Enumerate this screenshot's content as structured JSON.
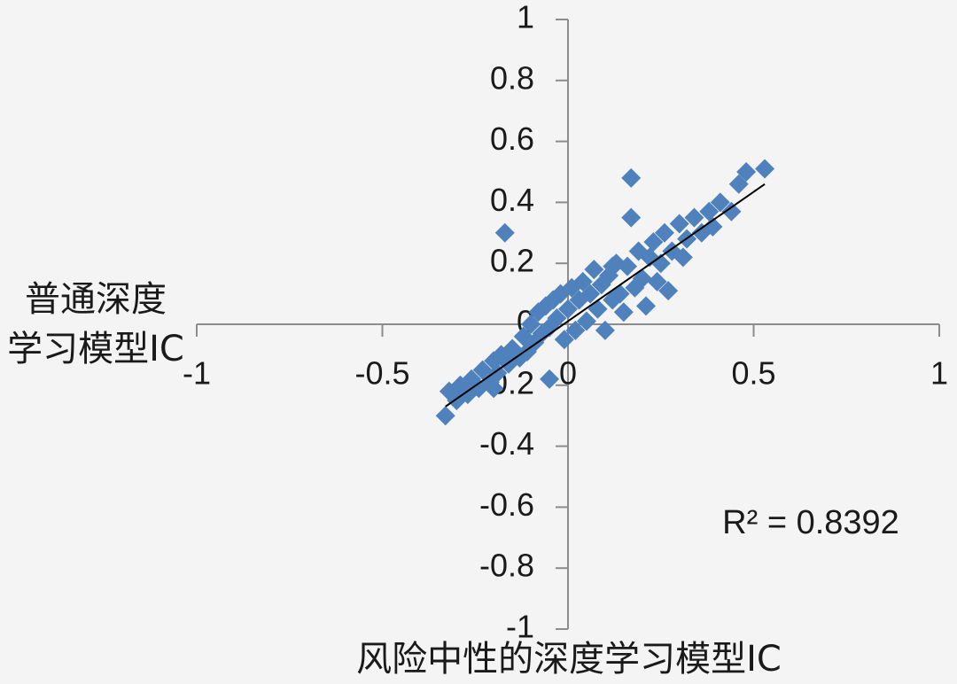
{
  "chart_data": {
    "type": "scatter",
    "xlabel": "风险中性的深度学习模型IC",
    "ylabel": [
      "普通深度",
      "学习模型IC"
    ],
    "annotation": "R² = 0.8392",
    "xlim": [
      -1,
      1
    ],
    "ylim": [
      -1,
      1
    ],
    "xticks": [
      -1,
      -0.5,
      0,
      0.5,
      1
    ],
    "yticks": [
      -1,
      -0.8,
      -0.6,
      -0.4,
      -0.2,
      0,
      0.2,
      0.4,
      0.6,
      0.8,
      1
    ],
    "color": "#4f81bd",
    "x": [
      -0.33,
      -0.32,
      -0.3,
      -0.29,
      -0.27,
      -0.26,
      -0.24,
      -0.23,
      -0.21,
      -0.2,
      -0.19,
      -0.18,
      -0.16,
      -0.15,
      -0.13,
      -0.12,
      -0.11,
      -0.1,
      -0.09,
      -0.08,
      -0.07,
      -0.06,
      -0.05,
      -0.04,
      -0.03,
      -0.02,
      -0.01,
      0.0,
      0.01,
      0.02,
      0.03,
      0.04,
      0.05,
      0.06,
      0.07,
      0.08,
      0.09,
      0.1,
      0.11,
      0.12,
      0.13,
      0.14,
      0.15,
      0.16,
      0.18,
      0.19,
      0.2,
      0.21,
      0.22,
      0.23,
      0.24,
      0.25,
      0.26,
      0.27,
      0.28,
      0.3,
      0.31,
      0.32,
      0.34,
      0.36,
      0.38,
      0.39,
      0.41,
      0.44,
      0.46,
      0.48,
      0.53,
      -0.17,
      0.17,
      0.17,
      -0.05,
      -0.2,
      0.12
    ],
    "values": [
      -0.3,
      -0.22,
      -0.25,
      -0.2,
      -0.23,
      -0.18,
      -0.21,
      -0.15,
      -0.19,
      -0.12,
      -0.16,
      -0.1,
      -0.13,
      -0.08,
      -0.11,
      -0.04,
      -0.09,
      0.0,
      -0.06,
      0.04,
      -0.03,
      0.06,
      -0.01,
      0.08,
      0.02,
      0.1,
      -0.05,
      0.05,
      0.12,
      -0.02,
      0.08,
      0.14,
      0.01,
      0.1,
      0.18,
      0.05,
      0.13,
      -0.02,
      0.16,
      0.08,
      0.2,
      0.1,
      0.04,
      0.19,
      0.12,
      0.24,
      0.15,
      0.06,
      0.22,
      0.27,
      0.14,
      0.2,
      0.3,
      0.11,
      0.24,
      0.33,
      0.22,
      0.28,
      0.35,
      0.3,
      0.37,
      0.32,
      0.4,
      0.37,
      0.46,
      0.5,
      0.51,
      0.3,
      0.48,
      0.35,
      -0.18,
      -0.21,
      0.19
    ],
    "trendline": {
      "x": [
        -0.33,
        0.53
      ],
      "y": [
        -0.27,
        0.46
      ],
      "color": "#000000"
    }
  }
}
